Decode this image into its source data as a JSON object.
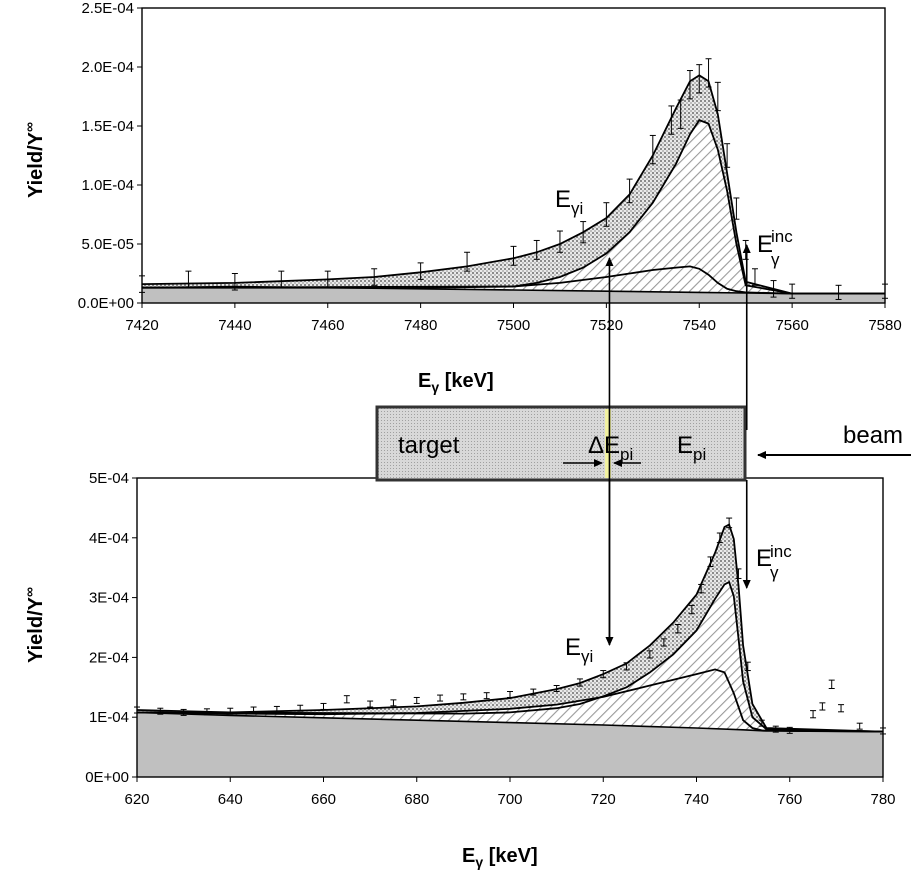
{
  "chart_data": [
    {
      "type": "line",
      "title": "",
      "xlabel_main": "E",
      "xlabel_sub": "γ",
      "xlabel_unit": " [keV]",
      "ylabel": "Yield/Y",
      "ylabel_sup": "∞",
      "xlim": [
        7420,
        7580
      ],
      "ylim": [
        0,
        0.00025
      ],
      "xticks": [
        7420,
        7440,
        7460,
        7480,
        7500,
        7520,
        7540,
        7560,
        7580
      ],
      "yticks": [
        0,
        5e-05,
        0.0001,
        0.00015,
        0.0002,
        0.00025
      ],
      "ytick_labels": [
        "0.0E+00",
        "5.0E-05",
        "1.0E-04",
        "1.5E-04",
        "2.0E-04",
        "2.5E-04"
      ],
      "background": {
        "x": [
          7420,
          7440,
          7460,
          7480,
          7500,
          7520,
          7540,
          7550,
          7560,
          7580
        ],
        "y": [
          1.3e-05,
          1.4e-05,
          1.3e-05,
          1.2e-05,
          1.1e-05,
          1e-05,
          9e-06,
          8.5e-06,
          8e-06,
          8e-06
        ]
      },
      "series": [
        {
          "x": [
            7420,
            7480,
            7500,
            7510,
            7520,
            7525,
            7530,
            7535,
            7538,
            7540,
            7542,
            7544,
            7546,
            7548,
            7550,
            7560,
            7580
          ],
          "y": [
            1.3e-05,
            1.3e-05,
            1.4e-05,
            1.7e-05,
            2.2e-05,
            2.5e-05,
            2.8e-05,
            3e-05,
            3.1e-05,
            2.9e-05,
            2.4e-05,
            1.7e-05,
            1.2e-05,
            1e-05,
            9e-06,
            8e-06,
            8e-06
          ]
        },
        {
          "x": [
            7420,
            7500,
            7505,
            7510,
            7515,
            7520,
            7525,
            7530,
            7535,
            7538,
            7540,
            7542,
            7544,
            7546,
            7548,
            7550,
            7560,
            7580
          ],
          "y": [
            1.3e-05,
            1.4e-05,
            1.7e-05,
            2.2e-05,
            3e-05,
            4.2e-05,
            6e-05,
            8.5e-05,
            0.000118,
            0.000143,
            0.000155,
            0.000152,
            0.00013,
            9.5e-05,
            5e-05,
            1.5e-05,
            8e-06,
            8e-06
          ]
        },
        {
          "x": [
            7420,
            7440,
            7460,
            7470,
            7480,
            7490,
            7500,
            7505,
            7510,
            7515,
            7520,
            7525,
            7530,
            7535,
            7538,
            7540,
            7542,
            7544,
            7546,
            7548,
            7550,
            7560,
            7580
          ],
          "y": [
            1.6e-05,
            1.7e-05,
            2e-05,
            2.2e-05,
            2.6e-05,
            3.1e-05,
            3.8e-05,
            4.3e-05,
            5e-05,
            6e-05,
            7.2e-05,
            9.2e-05,
            0.000125,
            0.000165,
            0.000188,
            0.000193,
            0.000188,
            0.00016,
            0.00011,
            6e-05,
            1.8e-05,
            8e-06,
            8e-06
          ]
        }
      ],
      "data_points": {
        "x": [
          7420,
          7430,
          7440,
          7450,
          7460,
          7470,
          7480,
          7490,
          7500,
          7505,
          7510,
          7515,
          7520,
          7525,
          7530,
          7534,
          7536,
          7538,
          7540,
          7542,
          7544,
          7546,
          7548,
          7550,
          7552,
          7556,
          7560,
          7570,
          7580
        ],
        "y": [
          1.6e-05,
          2e-05,
          1.8e-05,
          2e-05,
          2e-05,
          2.2e-05,
          2.7e-05,
          3.5e-05,
          4e-05,
          4.5e-05,
          5.2e-05,
          6e-05,
          7.5e-05,
          9.5e-05,
          0.00013,
          0.000155,
          0.00016,
          0.000185,
          0.00019,
          0.000195,
          0.000175,
          0.000125,
          8e-05,
          4.5e-05,
          2.2e-05,
          1.2e-05,
          1e-05,
          9e-06,
          1e-05
        ],
        "err": [
          7e-06,
          7e-06,
          7e-06,
          7e-06,
          7e-06,
          7e-06,
          7e-06,
          8e-06,
          8e-06,
          8e-06,
          9e-06,
          9e-06,
          1e-05,
          1e-05,
          1.2e-05,
          1.2e-05,
          1.2e-05,
          1.2e-05,
          1.2e-05,
          1.2e-05,
          1.2e-05,
          1e-05,
          9e-06,
          8e-06,
          7e-06,
          7e-06,
          6e-06,
          6e-06,
          6e-06
        ]
      }
    },
    {
      "type": "line",
      "title": "",
      "xlabel_main": "E",
      "xlabel_sub": "γ",
      "xlabel_unit": " [keV]",
      "ylabel": "Yield/Y",
      "ylabel_sup": "∞",
      "xlim": [
        620,
        780
      ],
      "ylim": [
        0,
        0.0005
      ],
      "xticks": [
        620,
        640,
        660,
        680,
        700,
        720,
        740,
        760,
        780
      ],
      "yticks": [
        0,
        0.0001,
        0.0002,
        0.0003,
        0.0004,
        0.0005
      ],
      "ytick_labels": [
        "0E+00",
        "1E-04",
        "2E-04",
        "3E-04",
        "4E-04",
        "5E-04"
      ],
      "background": {
        "x": [
          620,
          640,
          660,
          680,
          700,
          720,
          740,
          750,
          755,
          760,
          780
        ],
        "y": [
          0.000108,
          0.000103,
          9.9e-05,
          9.5e-05,
          9.1e-05,
          8.7e-05,
          8.2e-05,
          7.9e-05,
          7.7e-05,
          7.7e-05,
          7.6e-05
        ]
      },
      "series": [
        {
          "x": [
            620,
            640,
            660,
            680,
            700,
            710,
            720,
            730,
            740,
            744,
            746,
            748,
            750,
            752,
            754,
            760,
            780
          ],
          "y": [
            0.000108,
            0.000106,
            0.000105,
            0.000107,
            0.000114,
            0.000121,
            0.000134,
            0.000153,
            0.000172,
            0.00018,
            0.000175,
            0.00014,
            9.5e-05,
            8.2e-05,
            7.8e-05,
            7.7e-05,
            7.6e-05
          ]
        },
        {
          "x": [
            620,
            690,
            700,
            710,
            715,
            720,
            725,
            730,
            735,
            740,
            744,
            746,
            747,
            748,
            749,
            750,
            752,
            755,
            780
          ],
          "y": [
            0.000108,
            0.000106,
            0.000108,
            0.000115,
            0.000122,
            0.000135,
            0.00015,
            0.000175,
            0.000205,
            0.000245,
            0.000298,
            0.000322,
            0.000326,
            0.000302,
            0.000232,
            0.00016,
            0.0001,
            8e-05,
            7.6e-05
          ]
        },
        {
          "x": [
            620,
            640,
            660,
            680,
            690,
            700,
            710,
            715,
            720,
            725,
            730,
            735,
            740,
            744,
            746,
            747,
            748,
            749,
            750,
            752,
            755,
            780
          ],
          "y": [
            0.000112,
            0.000108,
            0.000112,
            0.000118,
            0.000124,
            0.000132,
            0.000147,
            0.000157,
            0.000172,
            0.00019,
            0.00022,
            0.000258,
            0.000305,
            0.000375,
            0.000418,
            0.000422,
            0.000398,
            0.00032,
            0.00022,
            0.000122,
            8.2e-05,
            7.6e-05
          ]
        }
      ],
      "data_points": {
        "x": [
          620,
          625,
          630,
          635,
          640,
          645,
          650,
          655,
          660,
          665,
          670,
          675,
          680,
          685,
          690,
          695,
          700,
          705,
          710,
          715,
          720,
          725,
          730,
          733,
          736,
          739,
          741,
          743,
          745,
          747,
          749,
          751,
          754,
          757,
          760,
          765,
          767,
          769,
          771,
          775,
          780
        ],
        "y": [
          0.000112,
          0.00011,
          0.000108,
          0.000109,
          0.00011,
          0.000112,
          0.000113,
          0.000115,
          0.000118,
          0.00013,
          0.000122,
          0.000124,
          0.000128,
          0.000132,
          0.000134,
          0.000136,
          0.000138,
          0.000142,
          0.000148,
          0.000158,
          0.000172,
          0.000185,
          0.000205,
          0.000225,
          0.000248,
          0.00028,
          0.000315,
          0.00036,
          0.0004,
          0.000425,
          0.00034,
          0.000185,
          9e-05,
          8e-05,
          7.8e-05,
          0.000105,
          0.000118,
          0.000155,
          0.000115,
          8.5e-05,
          7.7e-05
        ],
        "err": [
          5e-06,
          5e-06,
          5e-06,
          5e-06,
          5e-06,
          5e-06,
          5e-06,
          5e-06,
          5e-06,
          6e-06,
          5e-06,
          5e-06,
          5e-06,
          5e-06,
          5e-06,
          5e-06,
          5e-06,
          5e-06,
          5e-06,
          6e-06,
          6e-06,
          6e-06,
          6e-06,
          6e-06,
          7e-06,
          7e-06,
          7e-06,
          8e-06,
          8e-06,
          8e-06,
          8e-06,
          7e-06,
          5e-06,
          5e-06,
          5e-06,
          6e-06,
          6e-06,
          7e-06,
          6e-06,
          5e-06,
          5e-06
        ]
      }
    }
  ],
  "annotations": {
    "top_egi_main": "E",
    "top_egi_sub": "γi",
    "top_einc_main": "E",
    "top_einc_sub": "γ",
    "top_einc_sup": "inc",
    "bot_egi_main": "E",
    "bot_egi_sub": "γi",
    "bot_einc_main": "E",
    "bot_einc_sup": "inc",
    "bot_einc_sub": "γ",
    "target_label": "target",
    "delta_main": "ΔE",
    "delta_sub": "pi",
    "epi_main": "E",
    "epi_sub": "pi",
    "beam_label": "beam",
    "slice_energy_kev_top": 7521,
    "incident_energy_kev_top": 7550,
    "slice_energy_kev_bottom": 721,
    "incident_energy_kev_bottom": 751
  },
  "colors": {
    "fill_background": "#c0c0c0",
    "target_fill": "#d4d4d4",
    "slice_fill": "#f2f2a0",
    "line": "#000000"
  }
}
